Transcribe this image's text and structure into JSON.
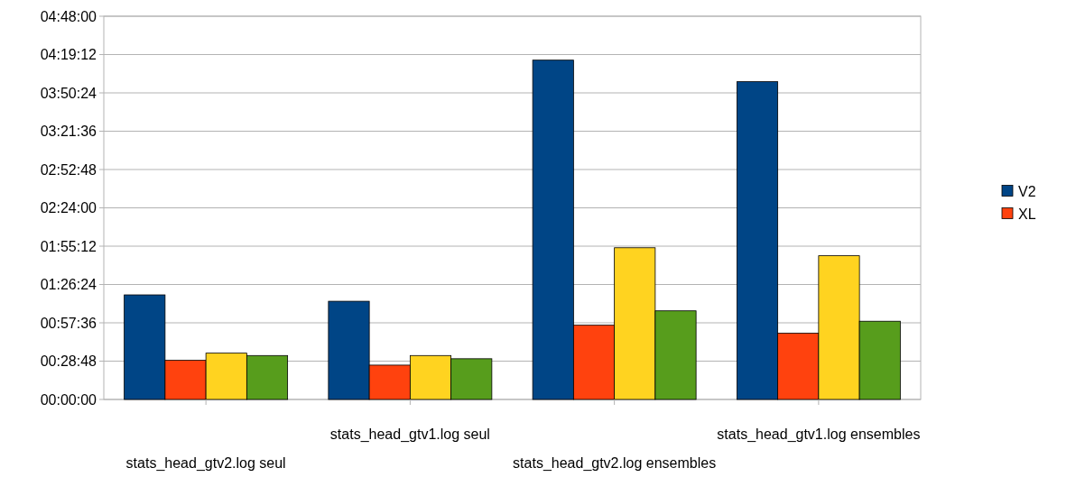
{
  "chart_data": {
    "type": "bar",
    "categories": [
      "stats_head_gtv2.log seul",
      "stats_head_gtv1.log seul",
      "stats_head_gtv2.log ensembles",
      "stats_head_gtv1.log ensembles"
    ],
    "series": [
      {
        "name": "V2",
        "color": "#004586",
        "values": [
          1.31,
          1.23,
          4.25,
          3.98
        ]
      },
      {
        "name": "XL",
        "color": "#ff420e",
        "values": [
          0.49,
          0.43,
          0.93,
          0.83
        ]
      },
      {
        "color": "#ffd320",
        "values": [
          0.58,
          0.55,
          1.9,
          1.8
        ]
      },
      {
        "color": "#579d1c",
        "values": [
          0.55,
          0.51,
          1.11,
          0.98
        ]
      }
    ],
    "ylim": [
      0,
      4.8
    ],
    "yticks": [
      {
        "value": 0,
        "label": "00:00:00"
      },
      {
        "value": 0.48,
        "label": "00:28:48"
      },
      {
        "value": 0.96,
        "label": "00:57:36"
      },
      {
        "value": 1.44,
        "label": "01:26:24"
      },
      {
        "value": 1.92,
        "label": "01:55:12"
      },
      {
        "value": 2.4,
        "label": "02:24:00"
      },
      {
        "value": 2.88,
        "label": "02:52:48"
      },
      {
        "value": 3.36,
        "label": "03:21:36"
      },
      {
        "value": 3.84,
        "label": "03:50:24"
      },
      {
        "value": 4.32,
        "label": "04:19:12"
      },
      {
        "value": 4.8,
        "label": "04:48:00"
      }
    ],
    "grid": "y",
    "legend": "right"
  }
}
